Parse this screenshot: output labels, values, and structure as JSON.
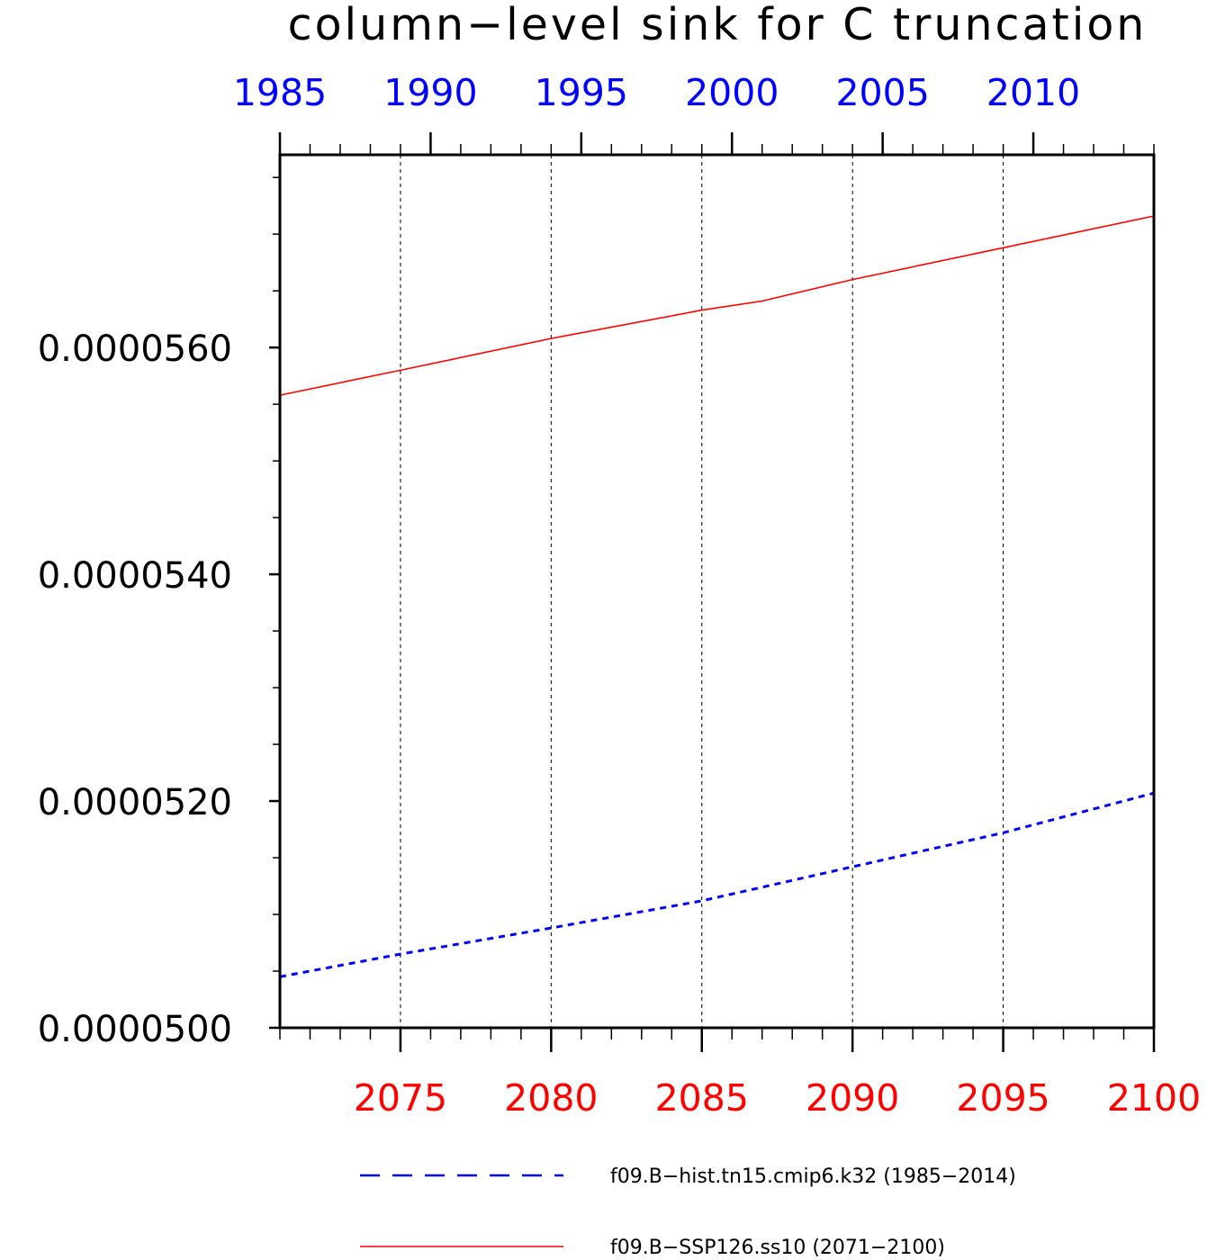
{
  "chart_data": {
    "type": "line",
    "title": "column−level sink for C truncation",
    "ylim": [
      5e-05,
      5.77e-05
    ],
    "yticks": [
      "0.0000500",
      "0.0000520",
      "0.0000540",
      "0.0000560"
    ],
    "yticks_values": [
      5e-05,
      5.2e-05,
      5.4e-05,
      5.6e-05
    ],
    "x_top": {
      "range": [
        1985,
        2014
      ],
      "tick_values": [
        1985,
        1990,
        1995,
        2000,
        2005,
        2010
      ],
      "tick_labels": [
        "1985",
        "1990",
        "1995",
        "2000",
        "2005",
        "2010"
      ],
      "color": "#0000ff"
    },
    "x_bottom": {
      "range": [
        2071,
        2100
      ],
      "tick_values": [
        2075,
        2080,
        2085,
        2090,
        2095,
        2100
      ],
      "tick_labels": [
        "2075",
        "2080",
        "2085",
        "2090",
        "2095",
        "2100"
      ],
      "color": "#ff0000"
    },
    "grid": "vertical dashed at major ticks",
    "series": [
      {
        "name": "f09.B−hist.tn15.cmip6.k32 (1985−2014)",
        "axis": "top",
        "color": "#0000ff",
        "style": "dashed",
        "x": [
          1985,
          1989,
          1994,
          1999,
          2004,
          2009,
          2014
        ],
        "y": [
          5.045e-05,
          5.065e-05,
          5.088e-05,
          5.112e-05,
          5.142e-05,
          5.172e-05,
          5.207e-05
        ]
      },
      {
        "name": "f09.B−SSP126.ss10 (2071−2100)",
        "axis": "bottom",
        "color": "#ff0000",
        "style": "solid",
        "x": [
          2071,
          2075,
          2080,
          2085,
          2087,
          2090,
          2095,
          2100
        ],
        "y": [
          5.558e-05,
          5.58e-05,
          5.608e-05,
          5.633e-05,
          5.641e-05,
          5.66e-05,
          5.688e-05,
          5.716e-05
        ]
      }
    ],
    "legend": {
      "placement": "bottom",
      "entries": [
        {
          "label": "f09.B−hist.tn15.cmip6.k32 (1985−2014)",
          "color": "#0000ff",
          "style": "dashed"
        },
        {
          "label": "f09.B−SSP126.ss10 (2071−2100)",
          "color": "#ff0000",
          "style": "solid"
        }
      ]
    }
  }
}
